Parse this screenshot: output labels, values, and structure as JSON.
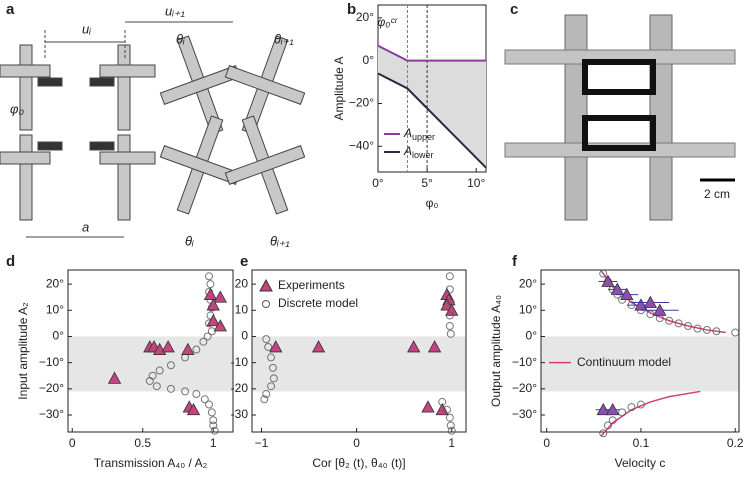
{
  "panel_labels": [
    "a",
    "b",
    "c",
    "d",
    "e",
    "f"
  ],
  "diagram": {
    "labels": [
      "uᵢ",
      "uᵢ₊₁",
      "θᵢ",
      "θᵢ₊₁",
      "φ₀",
      "a",
      "θᵢ",
      "θᵢ₊₁"
    ]
  },
  "photo": {
    "scale_label": "2 cm"
  },
  "chart_data": [
    {
      "type": "line",
      "xlabel": "φ₀",
      "ylabel": "Amplitude A",
      "xlim": [
        0,
        11
      ],
      "ylim": [
        -52,
        26
      ],
      "xticks": [
        {
          "value": 0,
          "label": "0°"
        },
        {
          "value": 5,
          "label": "5°"
        },
        {
          "value": 10,
          "label": "10°"
        }
      ],
      "yticks": [
        {
          "value": -40,
          "label": "−40°"
        },
        {
          "value": -20,
          "label": "−20°"
        },
        {
          "value": 0,
          "label": "0°"
        },
        {
          "value": 20,
          "label": "20°"
        }
      ],
      "annotation": "φ₀ᶜʳ",
      "vlines": [
        {
          "x": 3,
          "color": "#e05060"
        },
        {
          "x": 5,
          "color": "#333333"
        }
      ],
      "shade_between": true,
      "legend": "lower left",
      "series": [
        {
          "name": "Aupper",
          "color": "#8b3aa0",
          "x": [
            0,
            3,
            11
          ],
          "values": [
            7,
            0,
            0
          ]
        },
        {
          "name": "Alower",
          "color": "#2a2a40",
          "x": [
            0,
            3,
            11
          ],
          "values": [
            -6,
            -13,
            -50
          ]
        }
      ]
    },
    {
      "type": "scatter",
      "xlabel": "Transmission A₄₀ / A₂",
      "ylabel": "Input amplitude A₂",
      "xlim": [
        -0.03,
        1.14
      ],
      "ylim": [
        -36.5,
        25.4
      ],
      "xticks": [
        0,
        0.5,
        1
      ],
      "yticks": [
        {
          "value": -30,
          "label": "−30°"
        },
        {
          "value": -20,
          "label": "−20°"
        },
        {
          "value": -10,
          "label": "−10°"
        },
        {
          "value": 0,
          "label": "0°"
        },
        {
          "value": 10,
          "label": "10°"
        },
        {
          "value": 20,
          "label": "20°"
        }
      ],
      "shaded_range": [
        -21,
        0
      ],
      "series": [
        {
          "marker": "circle",
          "color": "#555555",
          "x": [
            0.97,
            0.98,
            0.97,
            0.98,
            0.99,
            0.98,
            0.97,
            0.99,
            0.96,
            0.93,
            0.88,
            0.8,
            0.7,
            0.62,
            0.57,
            0.55,
            0.6,
            0.7,
            0.8,
            0.88,
            0.94,
            0.97,
            0.99,
            1.0,
            1.0,
            1.01
          ],
          "y": [
            23,
            20,
            17,
            14,
            11,
            8,
            5,
            2,
            0,
            -2,
            -5,
            -8,
            -11,
            -13,
            -15,
            -17,
            -19,
            -20,
            -21,
            -22,
            -24,
            -26,
            -29,
            -32,
            -34,
            -36
          ]
        },
        {
          "marker": "triangle",
          "color": "#c2457f",
          "x": [
            0.98,
            1.05,
            1.0,
            1.0,
            1.05,
            0.55,
            0.58,
            0.62,
            0.68,
            0.82,
            0.3,
            0.83,
            0.86
          ],
          "y": [
            16,
            15,
            12,
            6,
            4,
            -4,
            -4,
            -5,
            -4,
            -5,
            -16,
            -27,
            -28
          ]
        }
      ]
    },
    {
      "type": "scatter",
      "xlabel": "Cor [θ₂ (t), θ₄₀ (t)]",
      "xlim": [
        -1.1,
        1.15
      ],
      "ylim": [
        -36.5,
        25.4
      ],
      "xticks": [
        {
          "value": -1,
          "label": "−1"
        },
        0,
        1
      ],
      "yticks": [
        -30,
        -20,
        -10,
        0,
        10,
        20
      ],
      "shaded_range": [
        -21,
        0
      ],
      "legend": "upper left",
      "series": [
        {
          "name": "Experiments",
          "marker": "triangle",
          "color": "#c2457f",
          "x": [
            0.95,
            0.97,
            0.95,
            1.0,
            -0.85,
            -0.4,
            0.6,
            0.82,
            0.75,
            0.9
          ],
          "y": [
            16,
            14,
            12,
            10,
            -4,
            -4,
            -4,
            -4,
            -27,
            -28
          ]
        },
        {
          "name": "Discrete model",
          "marker": "circle",
          "color": "#555555",
          "x": [
            0.98,
            0.98,
            0.99,
            0.98,
            0.98,
            0.99,
            -0.95,
            -0.93,
            -0.9,
            -0.88,
            -0.87,
            -0.9,
            -0.95,
            -0.97,
            0.9,
            0.95,
            0.98,
            0.99,
            1.0
          ],
          "y": [
            23,
            18,
            13,
            8,
            4,
            1,
            -1,
            -4,
            -8,
            -12,
            -16,
            -19,
            -22,
            -24,
            -25,
            -28,
            -31,
            -34,
            -36
          ]
        }
      ]
    },
    {
      "type": "scatter",
      "xlabel": "Velocity c",
      "ylabel": "Output amplitude A₄₀",
      "xlim": [
        -0.006,
        0.204
      ],
      "ylim": [
        -36.5,
        25.4
      ],
      "xticks": [
        0,
        0.1,
        0.2
      ],
      "yticks": [
        {
          "value": -30,
          "label": "−30°"
        },
        {
          "value": -20,
          "label": "−20°"
        },
        {
          "value": -10,
          "label": "−10°"
        },
        {
          "value": 0,
          "label": "0°"
        },
        {
          "value": 10,
          "label": "10°"
        },
        {
          "value": 20,
          "label": "20°"
        }
      ],
      "shaded_range": [
        -21,
        0
      ],
      "legend": "center left",
      "series": [
        {
          "name": "Continuum model",
          "marker": "line",
          "color": "#d0407a",
          "x": [
            0.058,
            0.07,
            0.09,
            0.11,
            0.13,
            0.15,
            0.17,
            0.19,
            null,
            0.058,
            0.07,
            0.09,
            0.11,
            0.13,
            0.163
          ],
          "y": [
            25,
            19,
            13,
            9,
            6,
            4,
            2.5,
            1.5,
            null,
            -38,
            -33,
            -28,
            -25,
            -23,
            -21
          ]
        },
        {
          "marker": "circle",
          "color": "#555555",
          "x": [
            0.06,
            0.065,
            0.07,
            0.075,
            0.08,
            0.09,
            0.1,
            0.11,
            0.12,
            0.13,
            0.14,
            0.15,
            0.16,
            0.17,
            0.18,
            0.2,
            0.06,
            0.065,
            0.07,
            0.08,
            0.09,
            0.1
          ],
          "y": [
            24,
            21,
            18,
            16,
            14,
            12,
            10,
            8.5,
            7,
            6,
            5,
            4,
            3,
            2.5,
            2,
            1.5,
            -37,
            -34,
            -32,
            -29,
            -27,
            -26
          ]
        },
        {
          "marker": "triangle",
          "color": "#8a4fb0",
          "x": [
            0.065,
            0.075,
            0.085,
            0.1,
            0.11,
            0.12,
            0.06,
            0.07
          ],
          "y": [
            21,
            18,
            16,
            12,
            13,
            10,
            -28,
            -28
          ],
          "xerr": [
            0.01,
            0.01,
            0.012,
            0.015,
            0.02,
            0.02,
            0.008,
            0.008
          ]
        }
      ]
    }
  ]
}
